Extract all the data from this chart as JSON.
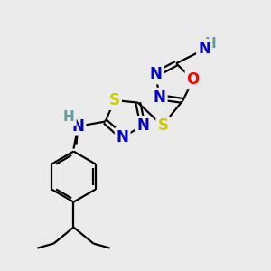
{
  "bg_color": "#ebebeb",
  "atom_colors": {
    "N": "#0000cd",
    "O": "#ff0000",
    "S": "#cccc00",
    "C": "#000000",
    "H_color": "#5f9ea0"
  },
  "bond_color": "#000000",
  "bond_lw": 1.6
}
